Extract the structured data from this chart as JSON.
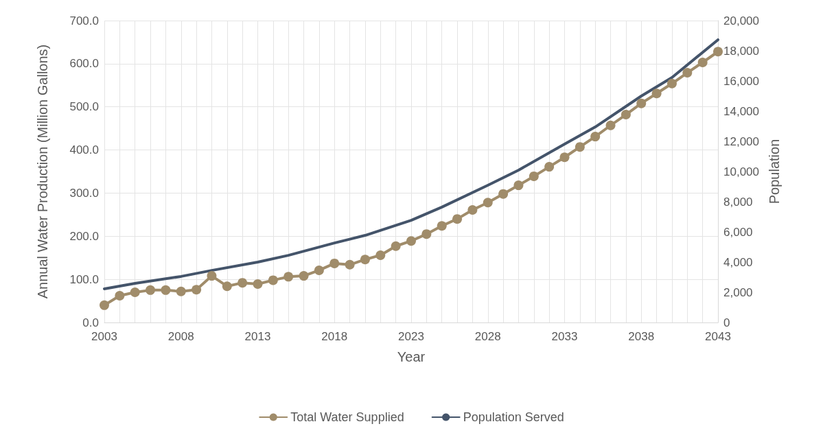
{
  "chart_data": {
    "type": "line",
    "xlabel": "Year",
    "ylabel": "Annual Water Production (Million Gallons)",
    "y2label": "Population",
    "xlim": [
      2003,
      2043
    ],
    "xticks": [
      2003,
      {
        "value": 2004,
        "label": null
      },
      {
        "value": 2005,
        "label": null
      },
      {
        "value": 2006,
        "label": null
      },
      {
        "value": 2007,
        "label": null
      },
      2008,
      {
        "value": 2009,
        "label": null
      },
      {
        "value": 2010,
        "label": null
      },
      {
        "value": 2011,
        "label": null
      },
      {
        "value": 2012,
        "label": null
      },
      2013,
      {
        "value": 2014,
        "label": null
      },
      {
        "value": 2015,
        "label": null
      },
      {
        "value": 2016,
        "label": null
      },
      {
        "value": 2017,
        "label": null
      },
      2018,
      {
        "value": 2019,
        "label": null
      },
      {
        "value": 2020,
        "label": null
      },
      {
        "value": 2021,
        "label": null
      },
      {
        "value": 2022,
        "label": null
      },
      2023,
      {
        "value": 2024,
        "label": null
      },
      {
        "value": 2025,
        "label": null
      },
      {
        "value": 2026,
        "label": null
      },
      {
        "value": 2027,
        "label": null
      },
      2028,
      {
        "value": 2029,
        "label": null
      },
      {
        "value": 2030,
        "label": null
      },
      {
        "value": 2031,
        "label": null
      },
      {
        "value": 2032,
        "label": null
      },
      2033,
      {
        "value": 2034,
        "label": null
      },
      {
        "value": 2035,
        "label": null
      },
      {
        "value": 2036,
        "label": null
      },
      {
        "value": 2037,
        "label": null
      },
      2038,
      {
        "value": 2039,
        "label": null
      },
      {
        "value": 2040,
        "label": null
      },
      {
        "value": 2041,
        "label": null
      },
      {
        "value": 2042,
        "label": null
      },
      2043
    ],
    "ylim": [
      0,
      700
    ],
    "yticks": [
      {
        "value": 0,
        "label": "0.0"
      },
      {
        "value": 100,
        "label": "100.0"
      },
      {
        "value": 200,
        "label": "200.0"
      },
      {
        "value": 300,
        "label": "300.0"
      },
      {
        "value": 400,
        "label": "400.0"
      },
      {
        "value": 500,
        "label": "500.0"
      },
      {
        "value": 600,
        "label": "600.0"
      },
      {
        "value": 700,
        "label": "700.0"
      }
    ],
    "y2lim": [
      0,
      20000
    ],
    "y2ticks": [
      0,
      {
        "value": 2000,
        "label": "2,000"
      },
      {
        "value": 4000,
        "label": "4,000"
      },
      {
        "value": 6000,
        "label": "6,000"
      },
      {
        "value": 8000,
        "label": "8,000"
      },
      {
        "value": 10000,
        "label": "10,000"
      },
      {
        "value": 12000,
        "label": "12,000"
      },
      {
        "value": 14000,
        "label": "14,000"
      },
      {
        "value": 16000,
        "label": "16,000"
      },
      {
        "value": 18000,
        "label": "18,000"
      },
      {
        "value": 20000,
        "label": "20,000"
      }
    ],
    "grid": true,
    "legend": "bottom",
    "series": [
      {
        "name": "Total Water Supplied",
        "color": "#a08c6a",
        "marker": "circle",
        "x": [
          2003,
          2004,
          2005,
          2006,
          2007,
          2008,
          2009,
          2010,
          2011,
          2012,
          2013,
          2014,
          2015,
          2016,
          2017,
          2018,
          2019,
          2020,
          2021,
          2022,
          2023,
          2024,
          2025,
          2026,
          2027,
          2028,
          2029,
          2030,
          2031,
          2032,
          2033,
          2034,
          2035,
          2036,
          2037,
          2038,
          2039,
          2040,
          2041,
          2042,
          2043
        ],
        "values": [
          40,
          62,
          70,
          75,
          75,
          72,
          76,
          108,
          84,
          92,
          89,
          98,
          106,
          108,
          121,
          137,
          134,
          146,
          156,
          177,
          189,
          205,
          224,
          240,
          261,
          278,
          298,
          318,
          339,
          361,
          383,
          407,
          431,
          457,
          482,
          508,
          531,
          554,
          579,
          603,
          628
        ]
      },
      {
        "name": "Population Served",
        "color": "#44546a",
        "marker": "none",
        "axis": "y2",
        "x": [
          2003,
          2005,
          2008,
          2010,
          2013,
          2015,
          2018,
          2020,
          2023,
          2025,
          2028,
          2030,
          2033,
          2035,
          2038,
          2040,
          2043
        ],
        "values": [
          2230,
          2590,
          3050,
          3450,
          4000,
          4450,
          5270,
          5770,
          6770,
          7640,
          9090,
          10090,
          11820,
          12950,
          15000,
          16230,
          18730
        ]
      }
    ]
  }
}
